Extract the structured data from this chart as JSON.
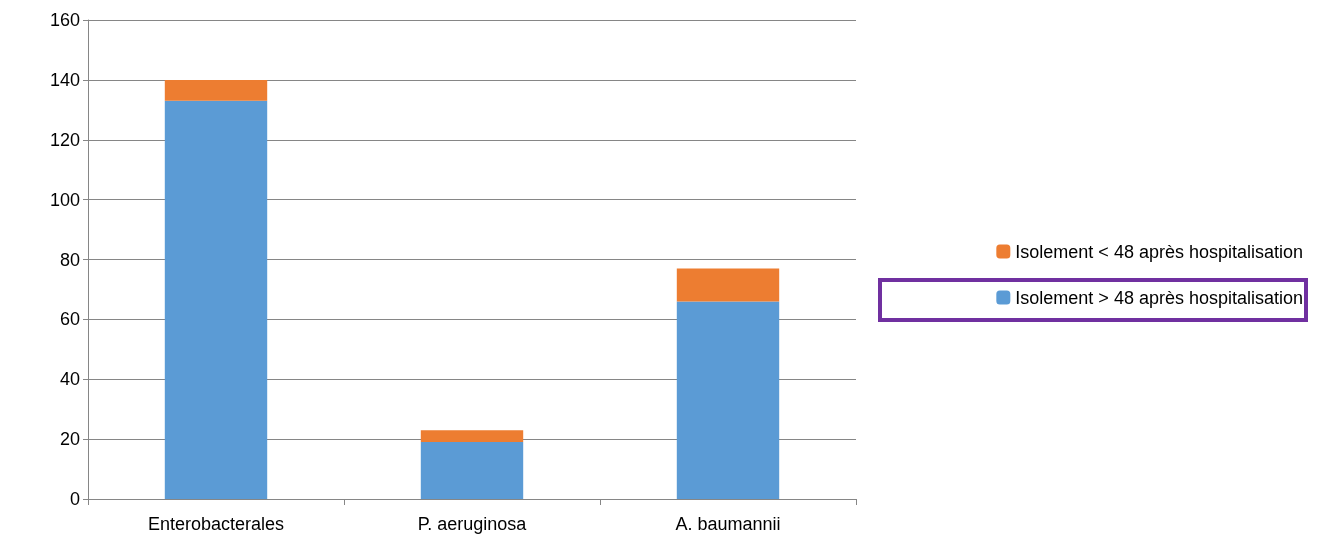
{
  "chart_data": {
    "type": "bar",
    "stacked": true,
    "categories": [
      "Enterobacterales",
      "P. aeruginosa",
      "A. baumannii"
    ],
    "series": [
      {
        "name": "Isolement > 48 après hospitalisation",
        "color": "#5b9bd5",
        "values": [
          133,
          19,
          66
        ]
      },
      {
        "name": "Isolement < 48 après hospitalisation",
        "color": "#ed7d31",
        "values": [
          7,
          4,
          11
        ]
      }
    ],
    "ylim": [
      0,
      160
    ],
    "yticks": [
      0,
      20,
      40,
      60,
      80,
      100,
      120,
      140,
      160
    ],
    "grid": "y",
    "legend": "right"
  }
}
